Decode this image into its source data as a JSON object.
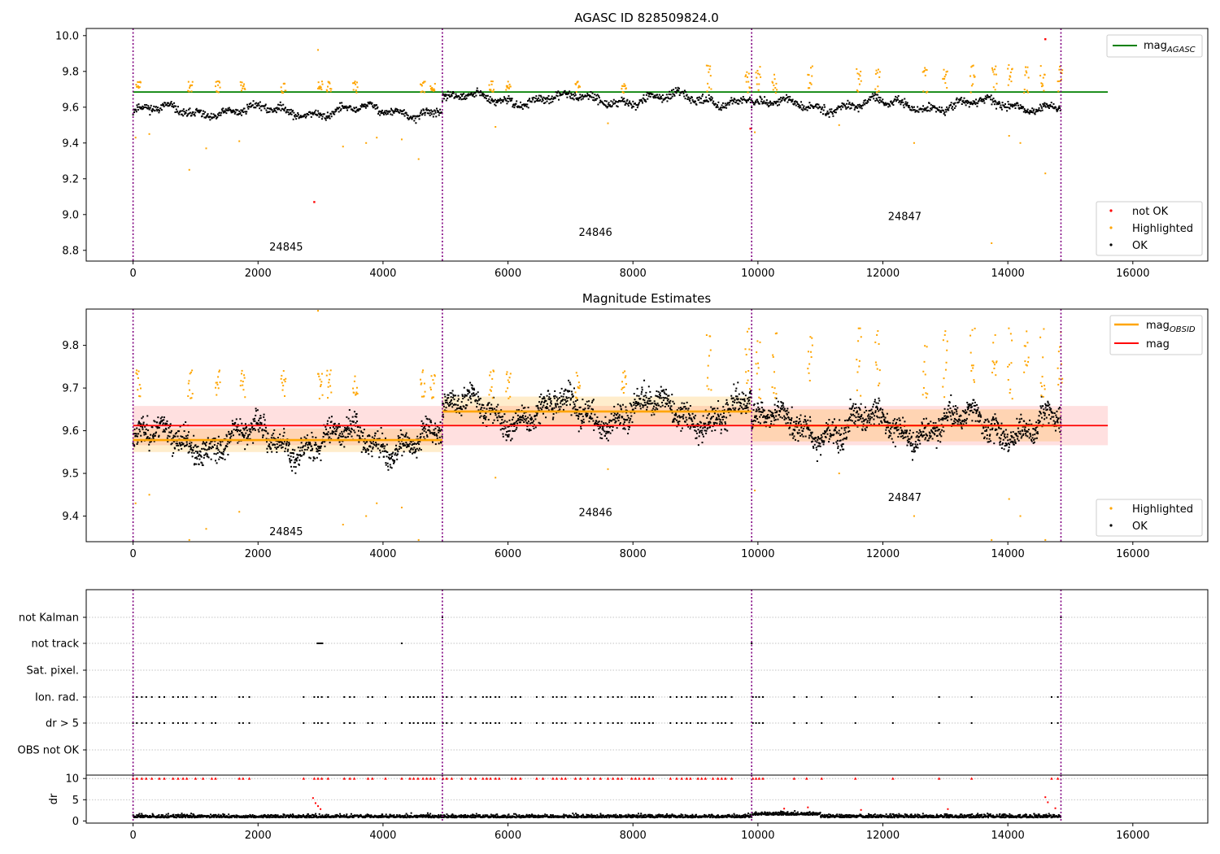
{
  "chart_data": [
    {
      "type": "scatter",
      "title": "AGASC ID 828509824.0",
      "xlim": [
        -750,
        17200
      ],
      "ylim": [
        8.74,
        10.04
      ],
      "xticks": [
        0,
        2000,
        4000,
        6000,
        8000,
        10000,
        12000,
        14000,
        16000
      ],
      "yticks": [
        8.8,
        9.0,
        9.2,
        9.4,
        9.6,
        9.8,
        10.0
      ],
      "grid": false,
      "obs_boundaries": [
        0,
        4950,
        9900,
        14850
      ],
      "obs_labels": [
        {
          "text": "24845",
          "x": 2450,
          "y": 8.8
        },
        {
          "text": "24846",
          "x": 7400,
          "y": 8.88
        },
        {
          "text": "24847",
          "x": 12350,
          "y": 8.97
        }
      ],
      "hline": {
        "label": "mag_AGASC",
        "y": 9.685,
        "xrange": [
          0,
          15600
        ],
        "color": "#008000"
      },
      "series": [
        {
          "name": "not OK",
          "color": "#ff0000",
          "points": [
            [
              2900,
              9.07
            ],
            [
              9880,
              9.48
            ],
            [
              14600,
              9.98
            ]
          ]
        },
        {
          "name": "Highlighted",
          "color": "#ffa500"
        },
        {
          "name": "OK",
          "color": "#000000"
        }
      ],
      "mean_levels": [
        {
          "x0": 0,
          "x1": 4950,
          "mean": 9.578
        },
        {
          "x0": 4950,
          "x1": 9900,
          "mean": 9.645
        },
        {
          "x0": 9900,
          "x1": 14850,
          "mean": 9.612
        }
      ],
      "outliers": [
        [
          40,
          9.43
        ],
        [
          260,
          9.45
        ],
        [
          900,
          9.25
        ],
        [
          1170,
          9.37
        ],
        [
          1700,
          9.41
        ],
        [
          2960,
          9.92
        ],
        [
          3360,
          9.38
        ],
        [
          3730,
          9.4
        ],
        [
          3900,
          9.43
        ],
        [
          4300,
          9.42
        ],
        [
          4570,
          9.31
        ],
        [
          5800,
          9.49
        ],
        [
          7600,
          9.51
        ],
        [
          9950,
          9.46
        ],
        [
          11300,
          9.5
        ],
        [
          12500,
          9.4
        ],
        [
          13740,
          8.84
        ],
        [
          14020,
          9.44
        ],
        [
          14200,
          9.4
        ],
        [
          14600,
          9.23
        ]
      ],
      "legend": "top-right + bottom-right"
    },
    {
      "type": "scatter",
      "title": "Magnitude Estimates",
      "xlim": [
        -750,
        17200
      ],
      "ylim": [
        9.34,
        9.885
      ],
      "xticks": [
        0,
        2000,
        4000,
        6000,
        8000,
        10000,
        12000,
        14000,
        16000
      ],
      "yticks": [
        9.4,
        9.5,
        9.6,
        9.7,
        9.8
      ],
      "grid": false,
      "obs_boundaries": [
        0,
        4950,
        9900,
        14850
      ],
      "obs_labels": [
        {
          "text": "24845",
          "x": 2450,
          "y": 9.355
        },
        {
          "text": "24846",
          "x": 7400,
          "y": 9.4
        },
        {
          "text": "24847",
          "x": 12350,
          "y": 9.435
        }
      ],
      "series": [
        {
          "name": "mag_OBSID",
          "type": "segments",
          "color": "#ffa500"
        },
        {
          "name": "mag",
          "type": "hline",
          "color": "#ff0000",
          "y": 9.612,
          "band": [
            9.566,
            9.658
          ],
          "xrange": [
            0,
            15600
          ]
        },
        {
          "name": "Highlighted",
          "color": "#ffa500"
        },
        {
          "name": "OK",
          "color": "#000000"
        }
      ],
      "obsid_bands": [
        {
          "x0": 0,
          "x1": 4950,
          "lo": 9.55,
          "hi": 9.605
        },
        {
          "x0": 4950,
          "x1": 9900,
          "lo": 9.61,
          "hi": 9.68
        },
        {
          "x0": 9900,
          "x1": 14850,
          "lo": 9.575,
          "hi": 9.65
        }
      ],
      "legend": "top-right + bottom-right"
    },
    {
      "type": "scatter",
      "title": "",
      "xlim": [
        -750,
        17200
      ],
      "xticks": [
        0,
        2000,
        4000,
        6000,
        8000,
        10000,
        12000,
        14000,
        16000
      ],
      "obs_boundaries": [
        0,
        4950,
        9900,
        14850
      ],
      "flag_rows": [
        "not Kalman",
        "not track",
        "Sat. pixel.",
        "Ion. rad.",
        "dr > 5",
        "OBS not OK"
      ],
      "flag_points": {
        "not Kalman": [
          4950,
          14850
        ],
        "not track": [
          2950,
          2970,
          2990,
          3010,
          3030,
          4300,
          9900
        ],
        "Ion. rad.": "clusters",
        "dr > 5": "clusters"
      },
      "flag_clusters": [
        0,
        60,
        140,
        210,
        300,
        420,
        500,
        640,
        720,
        800,
        860,
        1000,
        1120,
        1260,
        1320,
        1700,
        1760,
        1860,
        2730,
        2900,
        2960,
        3020,
        3120,
        3380,
        3470,
        3540,
        3760,
        3830,
        4040,
        4300,
        4430,
        4490,
        4560,
        4640,
        4700,
        4760,
        4820,
        4960,
        5020,
        5100,
        5260,
        5400,
        5480,
        5600,
        5660,
        5720,
        5800,
        5860,
        6060,
        6120,
        6200,
        6460,
        6560,
        6720,
        6780,
        6860,
        6920,
        7080,
        7160,
        7280,
        7380,
        7480,
        7600,
        7680,
        7760,
        7820,
        7980,
        8040,
        8100,
        8180,
        8260,
        8320,
        8600,
        8700,
        8780,
        8860,
        8920,
        9040,
        9100,
        9160,
        9280,
        9360,
        9420,
        9480,
        9580,
        9920,
        9970,
        10020,
        10080,
        10580,
        10780,
        11020,
        11560,
        12160,
        12900,
        13420,
        14700,
        14800
      ],
      "dr": {
        "ylabel": "dr",
        "yticks": [
          0,
          5,
          10
        ],
        "ylim": [
          -0.5,
          10.8
        ],
        "baseline": 0.8,
        "clip": 10,
        "spikes": [
          [
            2880,
            5.4
          ],
          [
            2920,
            4.2
          ],
          [
            2960,
            3.5
          ],
          [
            3000,
            2.8
          ],
          [
            10420,
            2.9
          ],
          [
            10800,
            3.2
          ],
          [
            11650,
            2.6
          ],
          [
            13040,
            2.8
          ],
          [
            14600,
            5.6
          ],
          [
            14640,
            4.4
          ],
          [
            14760,
            3.0
          ]
        ]
      }
    }
  ]
}
